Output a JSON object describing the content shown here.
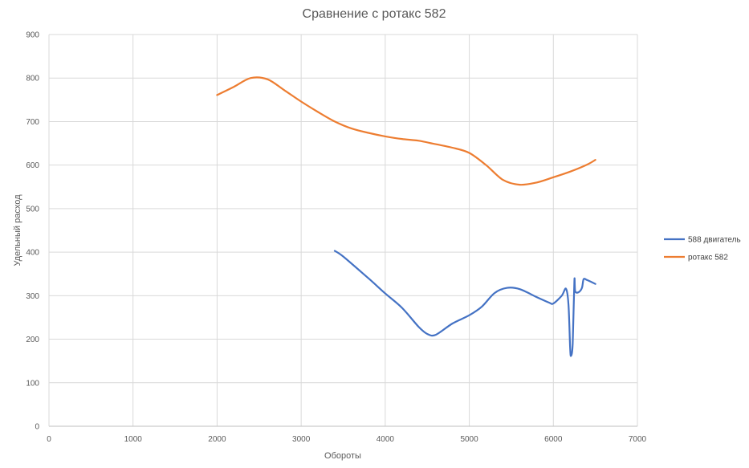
{
  "chart_data": {
    "type": "line",
    "title": "Сравнение с ротакс 582",
    "xlabel": "Обороты",
    "ylabel": "Удельный расход",
    "xlim": [
      0,
      7000
    ],
    "ylim": [
      0,
      900
    ],
    "xticks": [
      "0",
      "1000",
      "2000",
      "3000",
      "4000",
      "5000",
      "6000",
      "7000"
    ],
    "yticks": [
      "0",
      "100",
      "200",
      "300",
      "400",
      "500",
      "600",
      "700",
      "800",
      "900"
    ],
    "grid": true,
    "legend_position": "right",
    "series": [
      {
        "name": "588 двигатель",
        "color": "#4472c4",
        "points": [
          [
            3400,
            403
          ],
          [
            3500,
            390
          ],
          [
            3800,
            340
          ],
          [
            4000,
            305
          ],
          [
            4200,
            272
          ],
          [
            4400,
            228
          ],
          [
            4500,
            212
          ],
          [
            4600,
            210
          ],
          [
            4800,
            236
          ],
          [
            5000,
            255
          ],
          [
            5150,
            275
          ],
          [
            5300,
            306
          ],
          [
            5450,
            318
          ],
          [
            5600,
            315
          ],
          [
            5800,
            297
          ],
          [
            5950,
            284
          ],
          [
            6000,
            282
          ],
          [
            6100,
            300
          ],
          [
            6150,
            316
          ],
          [
            6180,
            280
          ],
          [
            6200,
            180
          ],
          [
            6210,
            162
          ],
          [
            6230,
            190
          ],
          [
            6250,
            335
          ],
          [
            6260,
            310
          ],
          [
            6300,
            308
          ],
          [
            6340,
            318
          ],
          [
            6360,
            338
          ],
          [
            6400,
            336
          ],
          [
            6500,
            327
          ]
        ]
      },
      {
        "name": "ротакс 582",
        "color": "#ed7d31",
        "points": [
          [
            2000,
            761
          ],
          [
            2200,
            780
          ],
          [
            2400,
            800
          ],
          [
            2600,
            797
          ],
          [
            2800,
            772
          ],
          [
            3000,
            746
          ],
          [
            3200,
            722
          ],
          [
            3400,
            700
          ],
          [
            3600,
            684
          ],
          [
            3800,
            674
          ],
          [
            4000,
            666
          ],
          [
            4200,
            660
          ],
          [
            4400,
            656
          ],
          [
            4600,
            648
          ],
          [
            4800,
            640
          ],
          [
            5000,
            628
          ],
          [
            5200,
            600
          ],
          [
            5400,
            566
          ],
          [
            5600,
            555
          ],
          [
            5800,
            560
          ],
          [
            6000,
            572
          ],
          [
            6200,
            585
          ],
          [
            6400,
            601
          ],
          [
            6500,
            612
          ]
        ]
      }
    ]
  }
}
